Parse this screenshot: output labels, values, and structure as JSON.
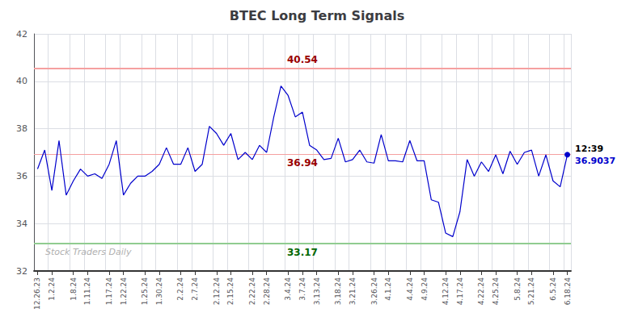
{
  "chart_data": {
    "type": "line",
    "title": "BTEC Long Term Signals",
    "watermark": "Stock Traders Daily",
    "color": "#0000cc",
    "categories": [
      "12.26.23",
      null,
      "1.2.24",
      null,
      null,
      "1.8.24",
      null,
      "1.11.24",
      null,
      null,
      "1.17.24",
      null,
      "1.22.24",
      null,
      null,
      "1.25.24",
      null,
      "1.30.24",
      null,
      null,
      "2.2.24",
      null,
      "2.7.24",
      null,
      null,
      "2.12.24",
      null,
      "2.15.24",
      null,
      null,
      "2.22.24",
      null,
      "2.28.24",
      null,
      null,
      "3.4.24",
      null,
      "3.7.24",
      null,
      "3.13.24",
      null,
      null,
      "3.18.24",
      null,
      "3.21.24",
      null,
      null,
      "3.26.24",
      null,
      "4.1.24",
      null,
      null,
      "4.4.24",
      null,
      "4.9.24",
      null,
      null,
      "4.12.24",
      null,
      "4.17.24",
      null,
      null,
      "4.22.24",
      null,
      "4.25.24",
      null,
      null,
      "5.8.24",
      null,
      "5.21.24",
      null,
      null,
      "6.5.24",
      null,
      "6.18.24"
    ],
    "values": [
      36.3,
      37.1,
      35.4,
      37.5,
      35.2,
      35.8,
      36.3,
      36.0,
      36.1,
      35.9,
      36.5,
      37.5,
      35.2,
      35.7,
      36.0,
      36.0,
      36.2,
      36.5,
      37.2,
      36.5,
      36.5,
      37.2,
      36.2,
      36.5,
      38.1,
      37.8,
      37.3,
      37.8,
      36.7,
      37.0,
      36.7,
      37.3,
      37.0,
      38.5,
      39.8,
      39.4,
      38.5,
      38.7,
      37.3,
      37.1,
      36.7,
      36.75,
      37.6,
      36.6,
      36.7,
      37.1,
      36.6,
      36.55,
      37.75,
      36.65,
      36.65,
      36.6,
      37.5,
      36.65,
      36.65,
      35.0,
      34.9,
      33.6,
      33.45,
      34.5,
      36.7,
      36.0,
      36.6,
      36.2,
      36.9,
      36.1,
      37.05,
      36.5,
      37.0,
      37.1,
      36.0,
      36.9,
      35.8,
      35.55,
      36.9037
    ],
    "last_point_label": "12:39",
    "reference_lines": [
      {
        "value": 40.54,
        "color": "#f5a0a0",
        "label_color": "#990000"
      },
      {
        "value": 33.17,
        "color": "#90cc90",
        "label_color": "#006600"
      },
      {
        "value": 36.94,
        "color": "#f5a0a0",
        "label_color": "#990000"
      }
    ],
    "ylim": [
      32,
      42
    ],
    "yticks": [
      32,
      34,
      36,
      38,
      40,
      42
    ],
    "grid": true
  }
}
